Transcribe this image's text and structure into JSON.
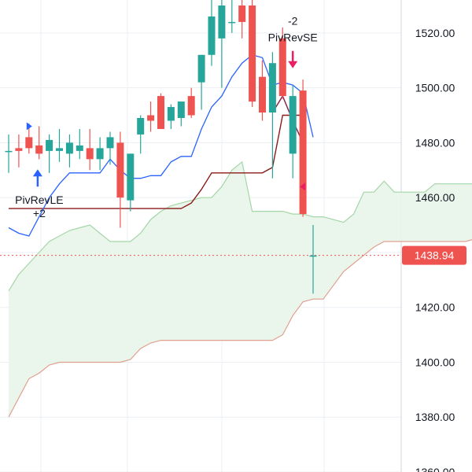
{
  "chart_data": {
    "type": "candlestick",
    "title": "",
    "xlabel": "",
    "ylabel": "",
    "ylim": [
      1360,
      1532
    ],
    "y_ticks": [
      1360,
      1380,
      1400,
      1420,
      1440,
      1460,
      1480,
      1500,
      1520
    ],
    "y_tick_labels": [
      "1360.00",
      "1380.00",
      "1400.00",
      "1420.00",
      "1440.00",
      "1460.00",
      "1480.00",
      "1500.00",
      "1520.00"
    ],
    "grid": true,
    "colors": {
      "up": "#26a69a",
      "down": "#ef5350",
      "kumo_fill": "#e8f5e9",
      "senkou_a": "#a5d6a7",
      "senkou_b": "#e0a090",
      "kijun": "#8b1a1a",
      "tenkan": "#2962ff",
      "lagging": "#8e244d",
      "signal_long": "#2962ff",
      "signal_short": "#e91e63",
      "price_tag": "#ef5350",
      "grid": "#eceff3",
      "axis_text": "#131722"
    },
    "candles": [
      {
        "o": 1477,
        "h": 1483,
        "l": 1469,
        "c": 1477
      },
      {
        "o": 1478,
        "h": 1483,
        "l": 1471,
        "c": 1477
      },
      {
        "o": 1482,
        "h": 1487,
        "l": 1476,
        "c": 1478
      },
      {
        "o": 1479,
        "h": 1486,
        "l": 1474,
        "c": 1476
      },
      {
        "o": 1477,
        "h": 1483,
        "l": 1469,
        "c": 1481
      },
      {
        "o": 1477,
        "h": 1485,
        "l": 1473,
        "c": 1478
      },
      {
        "o": 1476,
        "h": 1483,
        "l": 1471,
        "c": 1480
      },
      {
        "o": 1477,
        "h": 1485,
        "l": 1474,
        "c": 1479
      },
      {
        "o": 1478,
        "h": 1485,
        "l": 1470,
        "c": 1474
      },
      {
        "o": 1474,
        "h": 1482,
        "l": 1470,
        "c": 1478
      },
      {
        "o": 1478,
        "h": 1484,
        "l": 1472,
        "c": 1482
      },
      {
        "o": 1480,
        "h": 1484,
        "l": 1449,
        "c": 1460
      },
      {
        "o": 1459,
        "h": 1476,
        "l": 1455,
        "c": 1476
      },
      {
        "o": 1483,
        "h": 1490,
        "l": 1476,
        "c": 1489
      },
      {
        "o": 1490,
        "h": 1495,
        "l": 1484,
        "c": 1488
      },
      {
        "o": 1497,
        "h": 1498,
        "l": 1485,
        "c": 1485
      },
      {
        "o": 1488,
        "h": 1494,
        "l": 1485,
        "c": 1493
      },
      {
        "o": 1489,
        "h": 1494,
        "l": 1486,
        "c": 1495
      },
      {
        "o": 1497,
        "h": 1500,
        "l": 1489,
        "c": 1490
      },
      {
        "o": 1502,
        "h": 1512,
        "l": 1492,
        "c": 1512
      },
      {
        "o": 1512,
        "h": 1537,
        "l": 1508,
        "c": 1526
      },
      {
        "o": 1518,
        "h": 1535,
        "l": 1500,
        "c": 1530
      },
      {
        "o": 1524,
        "h": 1538,
        "l": 1520,
        "c": 1524
      },
      {
        "o": 1530,
        "h": 1536,
        "l": 1518,
        "c": 1524
      },
      {
        "o": 1530,
        "h": 1533,
        "l": 1493,
        "c": 1495
      },
      {
        "o": 1504,
        "h": 1510,
        "l": 1488,
        "c": 1491
      },
      {
        "o": 1491,
        "h": 1513,
        "l": 1467,
        "c": 1509
      },
      {
        "o": 1518,
        "h": 1522,
        "l": 1496,
        "c": 1497
      },
      {
        "o": 1476,
        "h": 1501,
        "l": 1467,
        "c": 1497
      },
      {
        "o": 1499,
        "h": 1503,
        "l": 1453,
        "c": 1454
      },
      {
        "o": 1438.9,
        "h": 1450,
        "l": 1425,
        "c": 1438.9
      }
    ],
    "tenkan": [
      [
        0,
        1449
      ],
      [
        1,
        1447
      ],
      [
        2,
        1446
      ],
      [
        3,
        1453
      ],
      [
        4,
        1460
      ],
      [
        5,
        1465
      ],
      [
        6,
        1469
      ],
      [
        7,
        1469
      ],
      [
        8,
        1469
      ],
      [
        9,
        1469
      ],
      [
        10,
        1474
      ],
      [
        11,
        1470
      ],
      [
        12,
        1467
      ],
      [
        13,
        1467
      ],
      [
        14,
        1468
      ],
      [
        15,
        1468
      ],
      [
        16,
        1473
      ],
      [
        17,
        1475
      ],
      [
        18,
        1475
      ],
      [
        19,
        1485
      ],
      [
        20,
        1493
      ],
      [
        21,
        1497
      ],
      [
        22,
        1504
      ],
      [
        23,
        1509
      ],
      [
        24,
        1512
      ],
      [
        25,
        1511
      ],
      [
        26,
        1501
      ],
      [
        27,
        1502
      ],
      [
        28,
        1501
      ],
      [
        29,
        1498
      ],
      [
        30,
        1482
      ]
    ],
    "kijun": [
      [
        0,
        1456
      ],
      [
        1,
        1456
      ],
      [
        2,
        1456
      ],
      [
        3,
        1456
      ],
      [
        4,
        1456
      ],
      [
        5,
        1456
      ],
      [
        6,
        1456
      ],
      [
        7,
        1456
      ],
      [
        8,
        1456
      ],
      [
        9,
        1456
      ],
      [
        10,
        1456
      ],
      [
        11,
        1456
      ],
      [
        12,
        1456
      ],
      [
        13,
        1456
      ],
      [
        14,
        1456
      ],
      [
        15,
        1456
      ],
      [
        16,
        1456
      ],
      [
        17,
        1456
      ],
      [
        18,
        1458
      ],
      [
        19,
        1463
      ],
      [
        20,
        1469
      ],
      [
        21,
        1469
      ],
      [
        22,
        1469
      ],
      [
        23,
        1469
      ],
      [
        24,
        1469
      ],
      [
        25,
        1469
      ],
      [
        26,
        1471
      ],
      [
        27,
        1490
      ],
      [
        28,
        1490
      ],
      [
        29,
        1490
      ]
    ],
    "senkou_a": [
      [
        0,
        1426
      ],
      [
        1,
        1432
      ],
      [
        2,
        1436
      ],
      [
        3,
        1440
      ],
      [
        4,
        1444
      ],
      [
        5,
        1446
      ],
      [
        6,
        1448
      ],
      [
        7,
        1449
      ],
      [
        8,
        1450
      ],
      [
        9,
        1447
      ],
      [
        10,
        1444
      ],
      [
        11,
        1444
      ],
      [
        12,
        1444
      ],
      [
        13,
        1447
      ],
      [
        14,
        1452
      ],
      [
        15,
        1455
      ],
      [
        16,
        1457
      ],
      [
        17,
        1458
      ],
      [
        18,
        1459
      ],
      [
        19,
        1460
      ],
      [
        20,
        1460
      ],
      [
        21,
        1464
      ],
      [
        22,
        1470
      ],
      [
        23,
        1473
      ],
      [
        24,
        1455
      ],
      [
        25,
        1455
      ],
      [
        26,
        1455
      ],
      [
        27,
        1455
      ],
      [
        28,
        1454
      ],
      [
        29,
        1454
      ],
      [
        30,
        1453
      ],
      [
        31,
        1453
      ],
      [
        32,
        1452
      ],
      [
        33,
        1451
      ],
      [
        34,
        1454
      ],
      [
        35,
        1462
      ],
      [
        36,
        1462
      ],
      [
        37,
        1466
      ],
      [
        38,
        1462
      ],
      [
        39,
        1462
      ],
      [
        40,
        1462
      ],
      [
        41,
        1462
      ],
      [
        42,
        1465
      ],
      [
        43,
        1465
      ],
      [
        44,
        1465
      ],
      [
        45,
        1465
      ],
      [
        46,
        1465
      ],
      [
        47,
        1468
      ],
      [
        48,
        1476
      ],
      [
        49,
        1480
      ],
      [
        50,
        1482
      ]
    ],
    "senkou_b": [
      [
        0,
        1380
      ],
      [
        1,
        1387
      ],
      [
        2,
        1394
      ],
      [
        3,
        1396
      ],
      [
        4,
        1399
      ],
      [
        5,
        1400
      ],
      [
        6,
        1400
      ],
      [
        7,
        1400
      ],
      [
        8,
        1400
      ],
      [
        9,
        1400
      ],
      [
        10,
        1400
      ],
      [
        11,
        1400
      ],
      [
        12,
        1401
      ],
      [
        13,
        1405
      ],
      [
        14,
        1407
      ],
      [
        15,
        1408
      ],
      [
        16,
        1408
      ],
      [
        17,
        1408
      ],
      [
        18,
        1408
      ],
      [
        19,
        1408
      ],
      [
        20,
        1408
      ],
      [
        21,
        1408
      ],
      [
        22,
        1408
      ],
      [
        23,
        1408
      ],
      [
        24,
        1408
      ],
      [
        25,
        1408
      ],
      [
        26,
        1408
      ],
      [
        27,
        1410
      ],
      [
        28,
        1417
      ],
      [
        29,
        1422
      ],
      [
        30,
        1423
      ],
      [
        31,
        1423
      ],
      [
        32,
        1428
      ],
      [
        33,
        1433
      ],
      [
        34,
        1436
      ],
      [
        35,
        1439
      ],
      [
        36,
        1442
      ],
      [
        37,
        1444
      ],
      [
        38,
        1444
      ],
      [
        39,
        1444
      ],
      [
        40,
        1444
      ],
      [
        41,
        1444
      ],
      [
        42,
        1444
      ],
      [
        43,
        1444
      ],
      [
        44,
        1444
      ],
      [
        45,
        1444
      ],
      [
        46,
        1445
      ],
      [
        47,
        1448
      ],
      [
        48,
        1454
      ],
      [
        49,
        1457
      ],
      [
        50,
        1457
      ]
    ],
    "lagging": [
      [
        26,
        1491
      ],
      [
        27,
        1497
      ],
      [
        28,
        1488
      ],
      [
        29,
        1480
      ]
    ],
    "current_price": 1438.94,
    "current_price_label": "1438.94",
    "signals": [
      {
        "type": "long",
        "bar": 1,
        "price": 1464,
        "label": "PivRevLE",
        "qty": "+2"
      },
      {
        "type": "short",
        "bar": 28,
        "price": 1510,
        "label": "PivRevSE",
        "qty": "-2"
      }
    ],
    "markers": [
      {
        "type": "flag-right",
        "bar": 2,
        "price": 1486
      },
      {
        "type": "flag-left",
        "bar": 29,
        "price": 1464
      }
    ]
  }
}
